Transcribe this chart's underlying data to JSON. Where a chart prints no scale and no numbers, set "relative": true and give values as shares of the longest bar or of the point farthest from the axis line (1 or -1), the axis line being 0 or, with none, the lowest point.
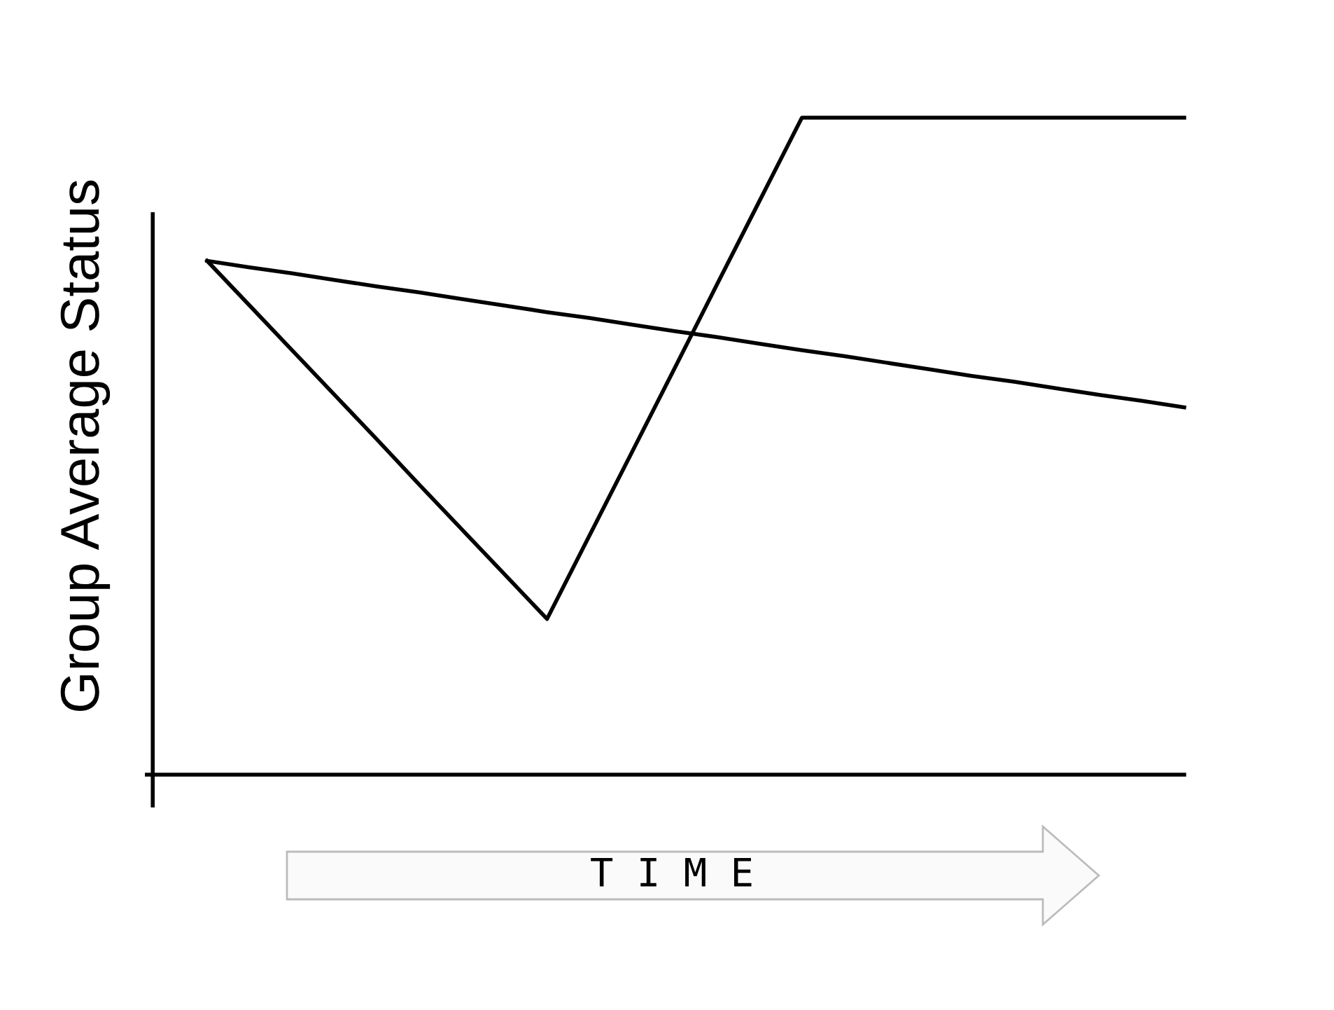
{
  "chart_data": {
    "type": "line",
    "relative": true,
    "ylabel": "Group Average Status",
    "xlabel": "T I M E",
    "categories": [
      null,
      null,
      null,
      null,
      null,
      null,
      null,
      null,
      null,
      null,
      null,
      null,
      null,
      null,
      null,
      null,
      null,
      null,
      null,
      null,
      null,
      null,
      null,
      null
    ],
    "series": [
      {
        "color": "#000000",
        "values": [
          0.782,
          0.714,
          0.646,
          0.578,
          0.51,
          0.441,
          0.373,
          0.305,
          0.237,
          0.364,
          0.491,
          0.618,
          0.746,
          0.873,
          1.0,
          1.0,
          1.0,
          1.0,
          1.0,
          1.0,
          1.0,
          1.0,
          1.0,
          1.0
        ]
      },
      {
        "color": "#000000",
        "values": [
          0.782,
          0.772,
          0.763,
          0.753,
          0.743,
          0.734,
          0.724,
          0.714,
          0.704,
          0.695,
          0.685,
          0.675,
          0.666,
          0.656,
          0.646,
          0.637,
          0.627,
          0.617,
          0.607,
          0.598,
          0.588,
          0.578,
          0.569,
          0.559
        ]
      }
    ],
    "legend": false,
    "marker": "none",
    "line_style": "solid"
  }
}
